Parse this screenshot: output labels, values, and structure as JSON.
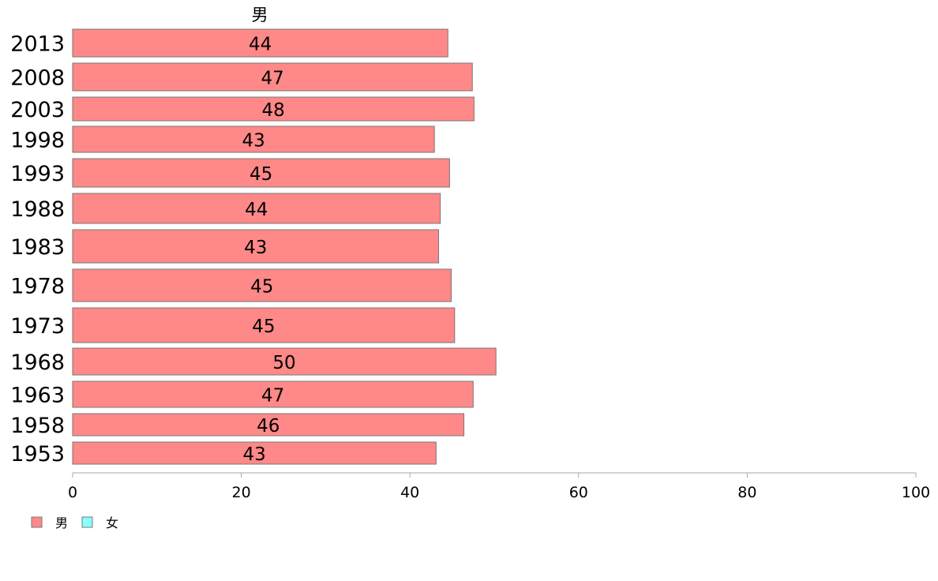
{
  "chart_data": {
    "type": "bar",
    "orientation": "horizontal",
    "categories": [
      "2013",
      "2008",
      "2003",
      "1998",
      "1993",
      "1988",
      "1983",
      "1978",
      "1973",
      "1968",
      "1963",
      "1958",
      "1953"
    ],
    "series": [
      {
        "name": "男",
        "color": "#ff8888",
        "values": [
          44.5,
          47.4,
          47.6,
          42.9,
          44.7,
          43.6,
          43.4,
          44.9,
          45.3,
          50.2,
          47.5,
          46.4,
          43.1
        ],
        "value_labels": [
          "44",
          "47",
          "48",
          "43",
          "45",
          "44",
          "43",
          "45",
          "45",
          "50",
          "47",
          "46",
          "43"
        ]
      }
    ],
    "series_title": "男",
    "xlim": [
      0,
      100
    ],
    "x_ticks": [
      "0",
      "20",
      "40",
      "60",
      "80",
      "100"
    ],
    "grid": false,
    "legend": {
      "position": "bottom-left",
      "items": [
        {
          "label": "男",
          "color": "#ff8888"
        },
        {
          "label": "女",
          "color": "#88ffff"
        }
      ]
    }
  }
}
